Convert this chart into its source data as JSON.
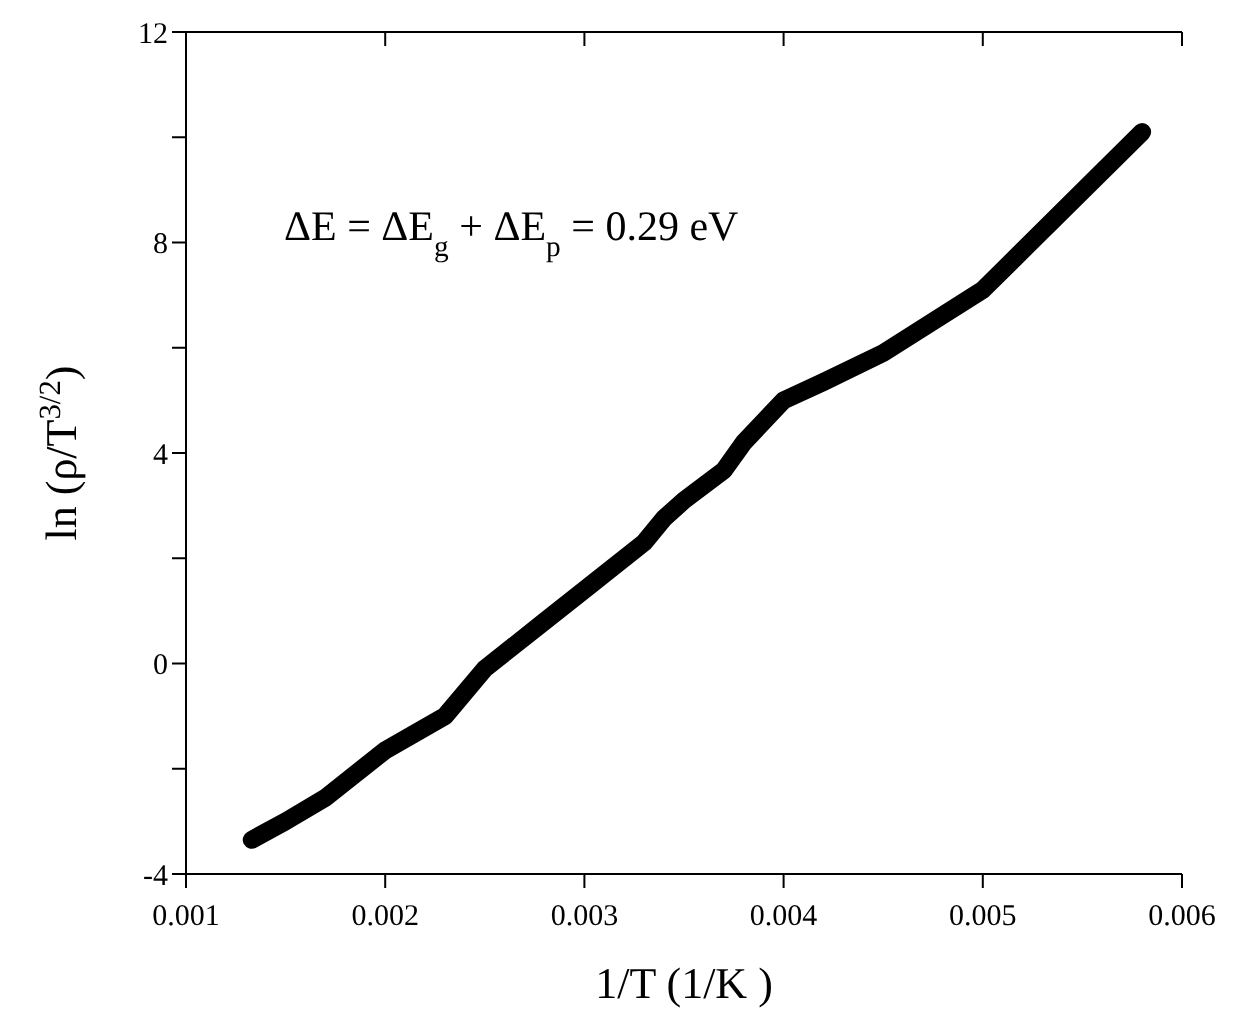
{
  "chart_data": {
    "type": "line",
    "xlabel": "1/T (1/K )",
    "ylabel": "ln (ρ/T$^{3/2}$)",
    "annotations": [
      "ΔE = ΔE$_{g}$ + ΔE$_{p}$ = 0.29 eV"
    ],
    "x": [
      0.00133,
      0.0015,
      0.0017,
      0.002,
      0.0023,
      0.0025,
      0.0028,
      0.003,
      0.0033,
      0.0034,
      0.0035,
      0.0037,
      0.0038,
      0.004,
      0.0042,
      0.0045,
      0.005,
      0.0058
    ],
    "series": [
      {
        "color": "#000000",
        "values": [
          -3.35,
          -3.0,
          -2.55,
          -1.65,
          -1.0,
          -0.1,
          0.8,
          1.4,
          2.3,
          2.76,
          3.1,
          3.67,
          4.2,
          5.0,
          5.35,
          5.9,
          7.1,
          10.1
        ]
      }
    ],
    "xlim": [
      0.001,
      0.006
    ],
    "xticks": [
      0.001,
      0.002,
      0.003,
      0.004,
      0.005,
      0.006
    ],
    "ylim": [
      -4,
      12
    ],
    "yticks": [
      -4,
      {
        "value": -2,
        "label": null
      },
      0,
      {
        "value": 2,
        "label": null
      },
      4,
      {
        "value": 6,
        "label": null
      },
      8,
      {
        "value": 10,
        "label": null
      },
      12
    ],
    "marker": "none",
    "line_style": "solid"
  }
}
